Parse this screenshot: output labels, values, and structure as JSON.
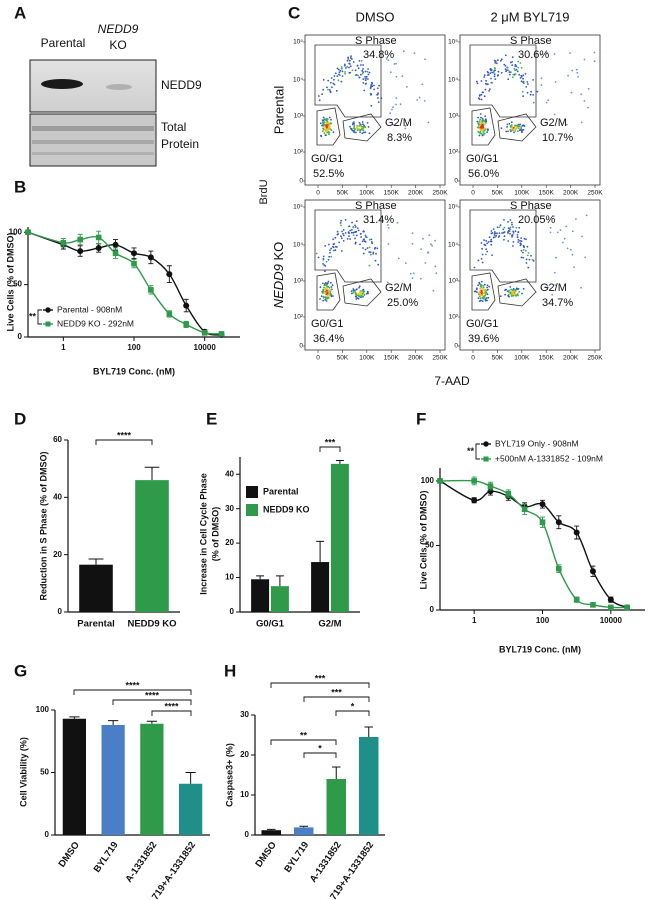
{
  "figure": {
    "panel_a": {
      "letter": "A",
      "lane_1": "Parental",
      "lane_2_gene": "NEDD9",
      "lane_2_suffix": "KO",
      "blot_1": "NEDD9",
      "blot_2_line_1": "Total",
      "blot_2_line_2": "Protein"
    },
    "panel_c": {
      "letter": "C",
      "columns": [
        "DMSO",
        "2 μM BYL719"
      ],
      "row_1": "Parental",
      "row_2_gene": "NEDD9",
      "row_2_suffix": "KO",
      "y_label": "BrdU",
      "x_label": "7-AAD",
      "x_ticks": [
        "0",
        "50K",
        "100K",
        "150K",
        "200K",
        "250K"
      ],
      "y_ticks": [
        "0",
        "10²",
        "10³",
        "10⁴",
        "10⁵"
      ],
      "plots": [
        {
          "s_label": "S Phase",
          "s_pct": "34.8%",
          "g2m_label": "G2/M",
          "g2m_pct": "8.3%",
          "g0g1_label": "G0/G1",
          "g0g1_pct": "52.5%"
        },
        {
          "s_label": "S Phase",
          "s_pct": "30.6%",
          "g2m_label": "G2/M",
          "g2m_pct": "10.7%",
          "g0g1_label": "G0/G1",
          "g0g1_pct": "56.0%"
        },
        {
          "s_label": "S Phase",
          "s_pct": "31.4%",
          "g2m_label": "G2/M",
          "g2m_pct": "25.0%",
          "g0g1_label": "G0/G1",
          "g0g1_pct": "36.4%"
        },
        {
          "s_label": "S Phase",
          "s_pct": "20.05%",
          "g2m_label": "G2/M",
          "g2m_pct": "34.7%",
          "g0g1_label": "G0/G1",
          "g0g1_pct": "39.6%"
        }
      ]
    }
  },
  "chart_data": [
    {
      "type": "line",
      "panel": "B",
      "y_label": "Live Cells (% of DMSO)",
      "x_label": "BYL719 Conc. (nM)",
      "xscale": "log",
      "xlim": [
        0.1,
        100000
      ],
      "xticks": [
        1,
        100,
        10000
      ],
      "ylim": [
        0,
        105
      ],
      "yticks": [
        0,
        50,
        100
      ],
      "x": [
        0.1,
        1,
        3,
        10,
        30,
        100,
        300,
        1000,
        3000,
        10000,
        30000
      ],
      "series": [
        {
          "name": "Parental - 908nM",
          "color": "#111111",
          "marker": "circle",
          "values": [
            100,
            88,
            82,
            85,
            88,
            80,
            76,
            60,
            30,
            5,
            2
          ],
          "errors": [
            2,
            4,
            5,
            4,
            5,
            5,
            6,
            8,
            6,
            2,
            1
          ]
        },
        {
          "name": "NEDD9 KO - 292nM",
          "color": "#2e9a4a",
          "marker": "square",
          "values": [
            100,
            90,
            93,
            95,
            80,
            70,
            45,
            22,
            12,
            4,
            3
          ],
          "errors": [
            2,
            4,
            5,
            6,
            5,
            4,
            4,
            3,
            3,
            2,
            1
          ]
        }
      ],
      "legend": "lower left",
      "annotations": [
        "**"
      ]
    },
    {
      "type": "bar",
      "panel": "D",
      "y_label": "Reduction in S Phase (% of DMSO)",
      "categories": [
        "Parental",
        "NEDD9 KO"
      ],
      "values": [
        16.5,
        46
      ],
      "errors": [
        2,
        4.5
      ],
      "colors": [
        "#111111",
        "#2e9a4a"
      ],
      "ylim": [
        0,
        60
      ],
      "yticks": [
        0,
        20,
        40,
        60
      ],
      "annotations": [
        "****"
      ]
    },
    {
      "type": "bar",
      "panel": "E",
      "y_label": [
        "Increase in Cell Cycle Phase",
        "(% of DMSO)"
      ],
      "categories": [
        "G0/G1",
        "G2/M"
      ],
      "series": [
        {
          "name": "Parental",
          "color": "#111111",
          "values": [
            9.5,
            14.5
          ],
          "errors": [
            1,
            6
          ]
        },
        {
          "name": "NEDD9 KO",
          "color": "#2e9a4a",
          "values": [
            7.5,
            43
          ],
          "errors": [
            3,
            1
          ]
        }
      ],
      "ylim": [
        0,
        45
      ],
      "yticks": [
        0,
        10,
        20,
        30,
        40
      ],
      "legend": "upper left",
      "annotations": [
        "***"
      ]
    },
    {
      "type": "line",
      "panel": "F",
      "y_label": "Live Cells (% of DMSO)",
      "x_label": "BYL719 Conc. (nM)",
      "xscale": "log",
      "xlim": [
        0.1,
        100000
      ],
      "xticks": [
        1,
        100,
        10000
      ],
      "ylim": [
        0,
        110
      ],
      "yticks": [
        0,
        50,
        100
      ],
      "x": [
        0.1,
        1,
        3,
        10,
        30,
        100,
        300,
        1000,
        3000,
        10000,
        30000
      ],
      "series": [
        {
          "name": "BYL719 Only - 908nM",
          "color": "#111111",
          "marker": "circle",
          "values": [
            100,
            85,
            92,
            88,
            80,
            82,
            68,
            60,
            30,
            8,
            2
          ],
          "errors": [
            1,
            2,
            3,
            3,
            3,
            3,
            5,
            5,
            4,
            2,
            1
          ]
        },
        {
          "name": "+500nM A-1331852 - 109nM",
          "color": "#2e9a4a",
          "marker": "square",
          "values": [
            100,
            100,
            96,
            90,
            78,
            68,
            32,
            8,
            4,
            2,
            2
          ],
          "errors": [
            1,
            3,
            3,
            3,
            4,
            4,
            3,
            2,
            1,
            1,
            1
          ]
        }
      ],
      "legend": "upper right",
      "annotations": [
        "**"
      ]
    },
    {
      "type": "bar",
      "panel": "G",
      "y_label": "Cell Viability (%)",
      "categories": [
        "DMSO",
        "BYL719",
        "A-1331852",
        "BYL719+A-1331852"
      ],
      "values": [
        93,
        88,
        89,
        41
      ],
      "errors": [
        1.5,
        3.5,
        2,
        9
      ],
      "colors": [
        "#111111",
        "#4a7fc8",
        "#2e9a4a",
        "#1f8f8a"
      ],
      "ylim": [
        0,
        100
      ],
      "yticks": [
        0,
        50,
        100
      ],
      "annotations": [
        "****",
        "****",
        "****"
      ]
    },
    {
      "type": "bar",
      "panel": "H",
      "y_label": "Caspase3+ (%)",
      "categories": [
        "DMSO",
        "BYL719",
        "A-1331852",
        "BYL719+A-1331852"
      ],
      "values": [
        1.2,
        1.9,
        14,
        24.5
      ],
      "errors": [
        0.2,
        0.3,
        3,
        2.5
      ],
      "colors": [
        "#111111",
        "#4a7fc8",
        "#2e9a4a",
        "#1f8f8a"
      ],
      "ylim": [
        0,
        30
      ],
      "yticks": [
        0,
        10,
        20,
        30
      ],
      "annotations": [
        "***",
        "***",
        "*",
        "**",
        "*"
      ]
    }
  ]
}
